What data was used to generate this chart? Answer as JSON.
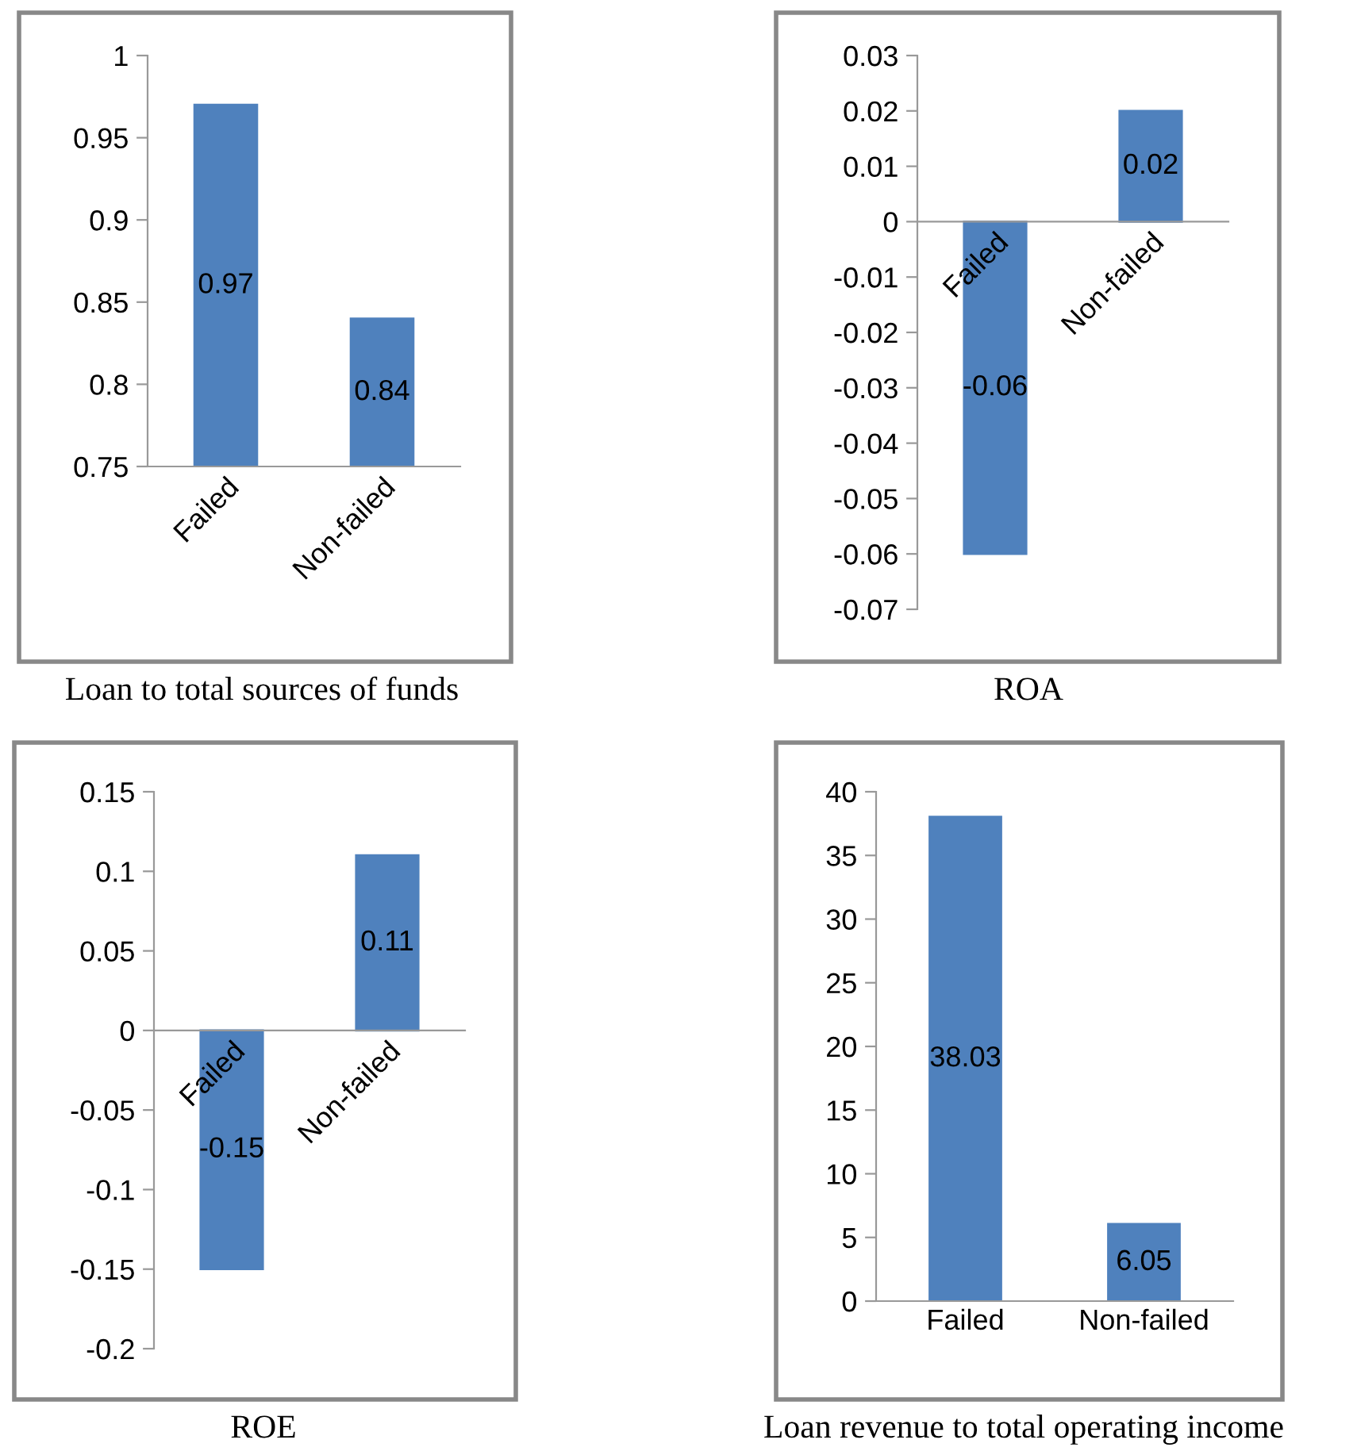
{
  "chart_data": [
    {
      "type": "bar",
      "title": "Loan to total sources of funds",
      "categories": [
        "Failed",
        "Non-failed"
      ],
      "values": [
        0.97,
        0.84
      ],
      "color": "#4f81bd",
      "ylim": [
        0.75,
        1
      ],
      "yticks": [
        0.75,
        0.8,
        0.85,
        0.9,
        0.95,
        1
      ],
      "data_labels": true,
      "grid": false,
      "legend": false
    },
    {
      "type": "bar",
      "title": "ROA",
      "categories": [
        "Failed",
        "Non-failed"
      ],
      "values": [
        -0.06,
        0.02
      ],
      "color": "#4f81bd",
      "ylim": [
        -0.07,
        0.03
      ],
      "yticks": [
        -0.07,
        -0.06,
        -0.05,
        -0.04,
        -0.03,
        -0.02,
        -0.01,
        0,
        0.01,
        0.02,
        0.03
      ],
      "data_labels": true,
      "grid": false,
      "legend": false
    },
    {
      "type": "bar",
      "title": "ROE",
      "categories": [
        "Failed",
        "Non-failed"
      ],
      "values": [
        -0.15,
        0.11
      ],
      "color": "#4f81bd",
      "ylim": [
        -0.2,
        0.15
      ],
      "yticks": [
        -0.2,
        -0.15,
        -0.1,
        -0.05,
        0,
        0.05,
        0.1,
        0.15
      ],
      "data_labels": true,
      "grid": false,
      "legend": false
    },
    {
      "type": "bar",
      "title": "Loan revenue to total operating income",
      "categories": [
        "Failed",
        "Non-failed"
      ],
      "values": [
        38.03,
        6.05
      ],
      "color": "#4f81bd",
      "ylim": [
        0,
        40
      ],
      "yticks": [
        0,
        5,
        10,
        15,
        20,
        25,
        30,
        35,
        40
      ],
      "data_labels": true,
      "grid": false,
      "legend": false
    }
  ]
}
